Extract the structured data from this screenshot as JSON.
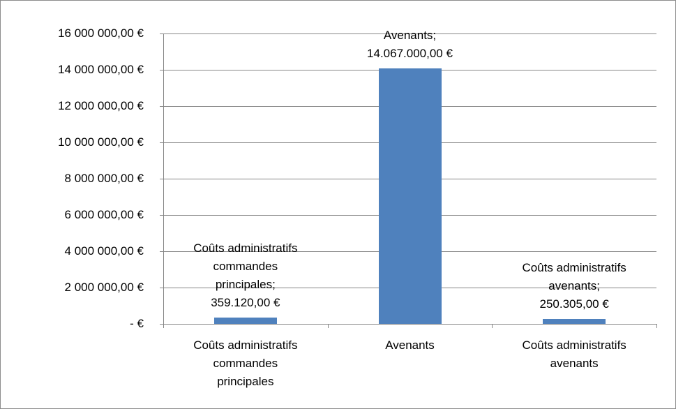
{
  "chart_data": {
    "type": "bar",
    "categories": [
      "Coûts administratifs commandes principales",
      "Avenants",
      "Coûts administratifs avenants"
    ],
    "values": [
      359120,
      14067000,
      250305
    ],
    "value_labels": [
      "Coûts administratifs commandes principales; 359.120,00 €",
      "Avenants; 14.067.000,00 €",
      "Coûts administratifs avenants; 250.305,00 €"
    ],
    "color": "#4f81bd",
    "ylim": [
      0,
      16000000
    ],
    "yticks": [
      {
        "value": 0,
        "label": "-   €"
      },
      {
        "value": 2000000,
        "label": "2 000 000,00 €"
      },
      {
        "value": 4000000,
        "label": "4 000 000,00 €"
      },
      {
        "value": 6000000,
        "label": "6 000 000,00 €"
      },
      {
        "value": 8000000,
        "label": "8 000 000,00 €"
      },
      {
        "value": 10000000,
        "label": "10 000 000,00 €"
      },
      {
        "value": 12000000,
        "label": "12 000 000,00 €"
      },
      {
        "value": 14000000,
        "label": "14 000 000,00 €"
      },
      {
        "value": 16000000,
        "label": "16 000 000,00 €"
      }
    ],
    "grid": true
  }
}
